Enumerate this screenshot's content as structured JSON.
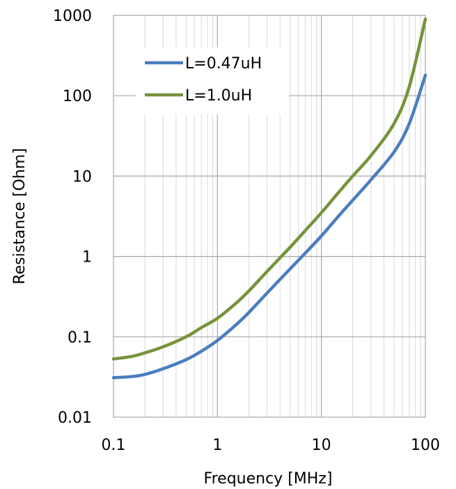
{
  "chart_data": {
    "type": "line",
    "xlabel": "Frequency [MHz]",
    "ylabel": "Resistance [Ohm]",
    "x_scale": "log",
    "y_scale": "log",
    "xlim": [
      0.1,
      100
    ],
    "ylim": [
      0.01,
      1000
    ],
    "x_ticks": [
      "0.1",
      "1",
      "10",
      "100"
    ],
    "y_ticks": [
      "0.01",
      "0.1",
      "1",
      "10",
      "100",
      "1000"
    ],
    "grid": true,
    "legend_position": "top-left",
    "series": [
      {
        "name": "L=0.47uH",
        "color": "#4a7ebf",
        "x": [
          0.1,
          0.15,
          0.2,
          0.3,
          0.5,
          0.7,
          1,
          1.5,
          2,
          3,
          5,
          7,
          10,
          15,
          20,
          30,
          50,
          70,
          100
        ],
        "y": [
          0.031,
          0.032,
          0.034,
          0.04,
          0.052,
          0.066,
          0.09,
          0.14,
          0.2,
          0.35,
          0.7,
          1.1,
          1.8,
          3.3,
          5.0,
          9.0,
          20,
          45,
          180
        ]
      },
      {
        "name": "L=1.0uH",
        "color": "#77933c",
        "x": [
          0.1,
          0.15,
          0.2,
          0.3,
          0.5,
          0.7,
          1,
          1.5,
          2,
          3,
          5,
          7,
          10,
          15,
          20,
          30,
          50,
          70,
          100
        ],
        "y": [
          0.053,
          0.057,
          0.063,
          0.075,
          0.1,
          0.13,
          0.17,
          0.26,
          0.37,
          0.65,
          1.3,
          2.1,
          3.5,
          6.5,
          10,
          18,
          45,
          130,
          900
        ]
      }
    ]
  }
}
